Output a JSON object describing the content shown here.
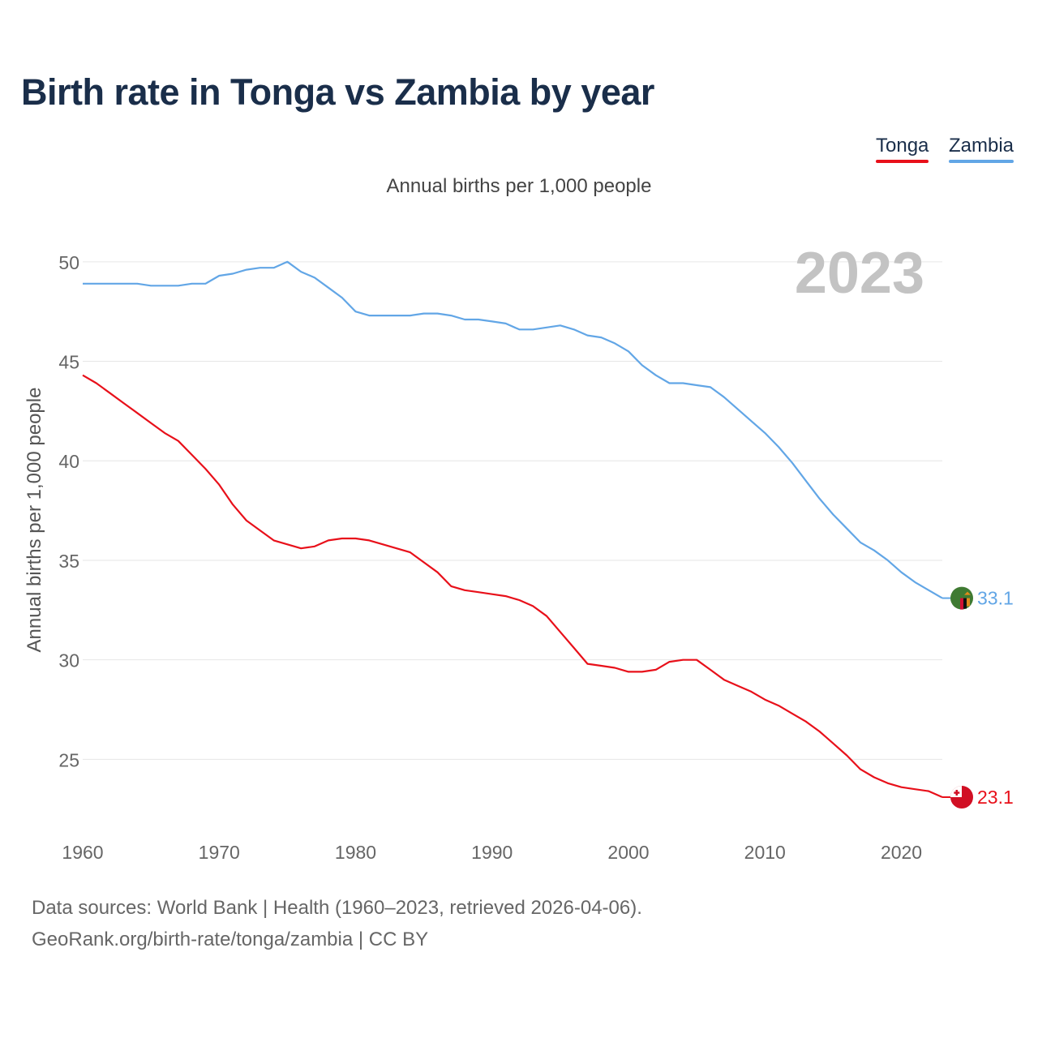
{
  "title": "Birth rate in Tonga vs Zambia by year",
  "subtitle": "Annual births per 1,000 people",
  "year_watermark": "2023",
  "colors": {
    "tonga": "#e8101a",
    "zambia": "#62a6e6",
    "title": "#1a2e4a",
    "grid": "#e6e6e6",
    "watermark": "#c3c3c3"
  },
  "legend": [
    {
      "label": "Tonga",
      "color": "#e8101a"
    },
    {
      "label": "Zambia",
      "color": "#62a6e6"
    }
  ],
  "footer": {
    "source": "Data sources: World Bank | Health (1960–2023, retrieved 2026-04-06).",
    "credit": "GeoRank.org/birth-rate/tonga/zambia | CC BY"
  },
  "chart_data": {
    "type": "line",
    "title": "Birth rate in Tonga vs Zambia by year",
    "xlabel": "",
    "ylabel": "Annual births per 1,000 people",
    "xlim": [
      1960,
      2023
    ],
    "ylim": [
      22,
      51.5
    ],
    "xticks": [
      1960,
      1970,
      1980,
      1990,
      2000,
      2010,
      2020
    ],
    "yticks": [
      25,
      30,
      35,
      40,
      45,
      50
    ],
    "grid": true,
    "x": [
      1960,
      1961,
      1962,
      1963,
      1964,
      1965,
      1966,
      1967,
      1968,
      1969,
      1970,
      1971,
      1972,
      1973,
      1974,
      1975,
      1976,
      1977,
      1978,
      1979,
      1980,
      1981,
      1982,
      1983,
      1984,
      1985,
      1986,
      1987,
      1988,
      1989,
      1990,
      1991,
      1992,
      1993,
      1994,
      1995,
      1996,
      1997,
      1998,
      1999,
      2000,
      2001,
      2002,
      2003,
      2004,
      2005,
      2006,
      2007,
      2008,
      2009,
      2010,
      2011,
      2012,
      2013,
      2014,
      2015,
      2016,
      2017,
      2018,
      2019,
      2020,
      2021,
      2022,
      2023
    ],
    "series": [
      {
        "name": "Tonga",
        "color": "#e8101a",
        "end_label": "23.1",
        "values": [
          44.3,
          43.9,
          43.4,
          42.9,
          42.4,
          41.9,
          41.4,
          41.0,
          40.3,
          39.6,
          38.8,
          37.8,
          37.0,
          36.5,
          36.0,
          35.8,
          35.6,
          35.7,
          36.0,
          36.1,
          36.1,
          36.0,
          35.8,
          35.6,
          35.4,
          34.9,
          34.4,
          33.7,
          33.5,
          33.4,
          33.3,
          33.2,
          33.0,
          32.7,
          32.2,
          31.4,
          30.6,
          29.8,
          29.7,
          29.6,
          29.4,
          29.4,
          29.5,
          29.9,
          30.0,
          30.0,
          29.5,
          29.0,
          28.7,
          28.4,
          28.0,
          27.7,
          27.3,
          26.9,
          26.4,
          25.8,
          25.2,
          24.5,
          24.1,
          23.8,
          23.6,
          23.5,
          23.4,
          23.1
        ]
      },
      {
        "name": "Zambia",
        "color": "#62a6e6",
        "end_label": "33.1",
        "values": [
          48.9,
          48.9,
          48.9,
          48.9,
          48.9,
          48.8,
          48.8,
          48.8,
          48.9,
          48.9,
          49.3,
          49.4,
          49.6,
          49.7,
          49.7,
          50.0,
          49.5,
          49.2,
          48.7,
          48.2,
          47.5,
          47.3,
          47.3,
          47.3,
          47.3,
          47.4,
          47.4,
          47.3,
          47.1,
          47.1,
          47.0,
          46.9,
          46.6,
          46.6,
          46.7,
          46.8,
          46.6,
          46.3,
          46.2,
          45.9,
          45.5,
          44.8,
          44.3,
          43.9,
          43.9,
          43.8,
          43.7,
          43.2,
          42.6,
          42.0,
          41.4,
          40.7,
          39.9,
          39.0,
          38.1,
          37.3,
          36.6,
          35.9,
          35.5,
          35.0,
          34.4,
          33.9,
          33.5,
          33.1
        ]
      }
    ]
  }
}
